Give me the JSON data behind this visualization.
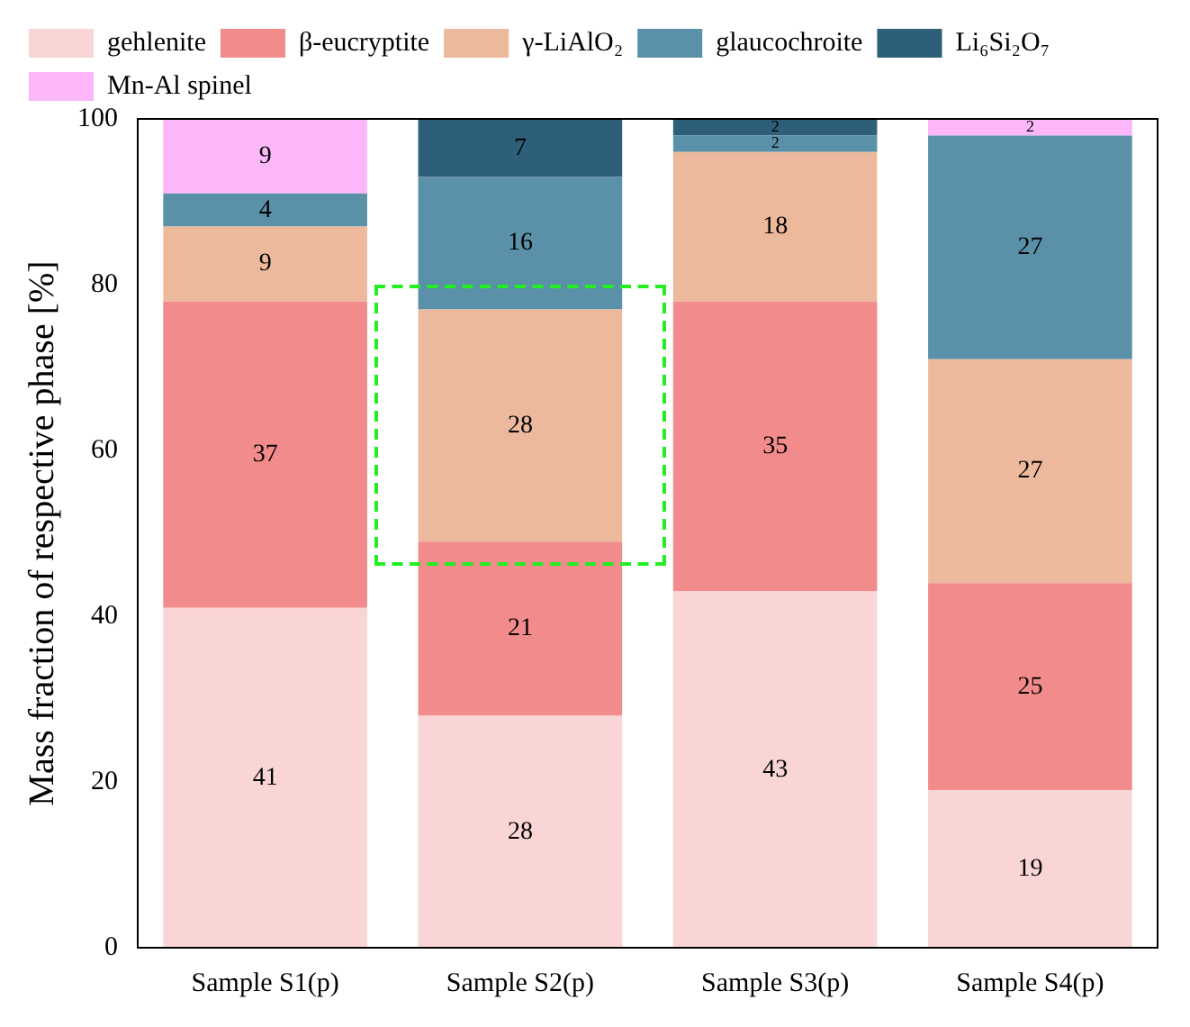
{
  "chart_data": {
    "type": "bar",
    "stacked": true,
    "ylabel": "Mass fraction of respective phase [%]",
    "categories": [
      "Sample S1(p)",
      "Sample S2(p)",
      "Sample S3(p)",
      "Sample S4(p)"
    ],
    "series": [
      {
        "name": "gehlenite",
        "color": "#f9d5d5",
        "values": [
          41,
          28,
          43,
          19
        ]
      },
      {
        "name": "β-eucryptite",
        "color": "#f28b8b",
        "values": [
          37,
          21,
          35,
          25
        ]
      },
      {
        "name": "γ-LiAlO₂",
        "color": "#edb99d",
        "values": [
          9,
          28,
          18,
          27
        ]
      },
      {
        "name": "glaucochroite",
        "color": "#5a90a8",
        "values": [
          4,
          16,
          2,
          27
        ]
      },
      {
        "name": "Li₆Si₂O₇",
        "color": "#2e5f78",
        "values": [
          null,
          7,
          2,
          null
        ]
      },
      {
        "name": "Mn-Al spinel",
        "color": "#fbb7f9",
        "values": [
          9,
          null,
          null,
          2
        ]
      }
    ],
    "ylim": [
      0,
      100
    ],
    "yticks": [
      0,
      20,
      40,
      60,
      80,
      100
    ],
    "grid": false,
    "legend": "top",
    "data_labels": true
  }
}
